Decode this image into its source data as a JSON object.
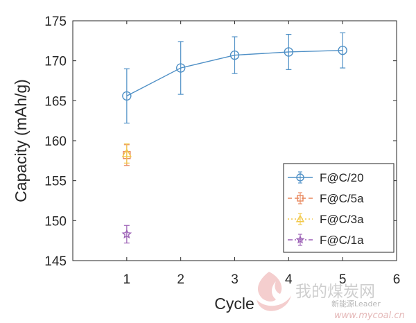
{
  "chart_data": {
    "type": "scatter",
    "title": "",
    "xlabel": "Cycle",
    "ylabel": "Capacity (mAh/g)",
    "xlim": [
      0,
      6
    ],
    "ylim": [
      145,
      175
    ],
    "xticks": [
      1,
      2,
      3,
      4,
      5,
      6
    ],
    "yticks": [
      145,
      150,
      155,
      160,
      165,
      170,
      175
    ],
    "grid": false,
    "legend_position": "bottom-right",
    "series": [
      {
        "name": "F@C/20",
        "color": "#4f90c6",
        "marker": "circle",
        "line": "solid",
        "x": [
          1,
          2,
          3,
          4,
          5
        ],
        "y": [
          165.6,
          169.1,
          170.7,
          171.1,
          171.3
        ],
        "err": [
          3.4,
          3.3,
          2.3,
          2.2,
          2.2
        ]
      },
      {
        "name": "F@C/5a",
        "color": "#e8875c",
        "marker": "square",
        "line": "dashed",
        "x": [
          1
        ],
        "y": [
          158.2
        ],
        "err": [
          1.3
        ]
      },
      {
        "name": "F@C/3a",
        "color": "#f2c94c",
        "marker": "triangle",
        "line": "dotted",
        "x": [
          1
        ],
        "y": [
          158.4
        ],
        "err": [
          1.2
        ]
      },
      {
        "name": "F@C/1a",
        "color": "#9b5fb5",
        "marker": "star",
        "line": "dashdot",
        "x": [
          1
        ],
        "y": [
          148.3
        ],
        "err": [
          1.1
        ]
      }
    ]
  },
  "watermark": {
    "site_name": "我的煤炭网",
    "account": "新能源Leader",
    "url": "www.mycoal.cn"
  }
}
